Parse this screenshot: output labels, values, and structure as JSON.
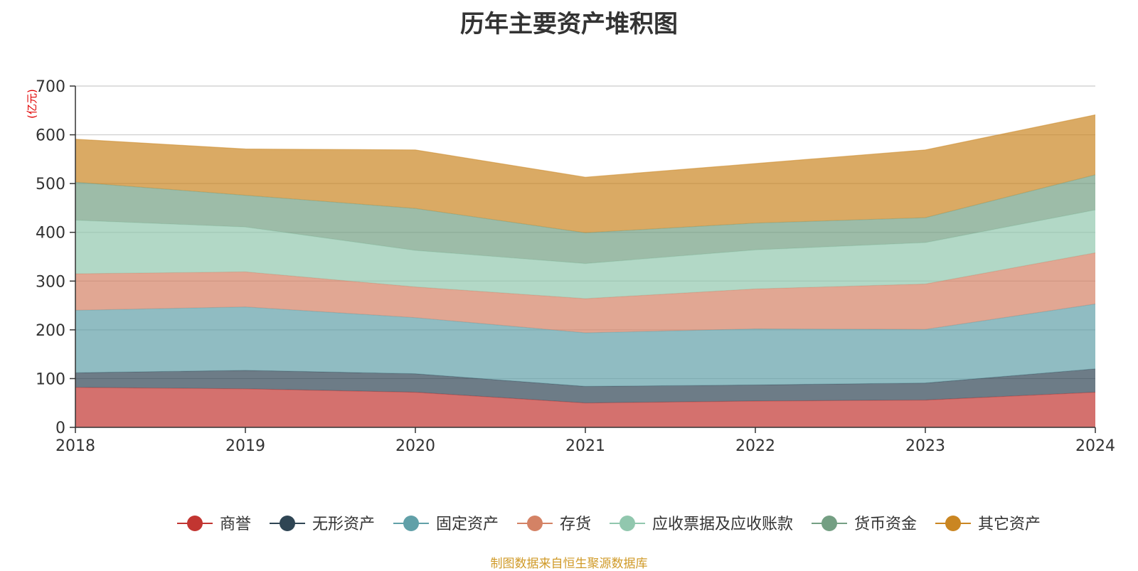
{
  "chart_data": {
    "type": "area",
    "stacked": true,
    "title": "历年主要资产堆积图",
    "unit_label": "(亿元)",
    "source_note": "制图数据来自恒生聚源数据库",
    "categories": [
      "2018",
      "2019",
      "2020",
      "2021",
      "2022",
      "2023",
      "2024"
    ],
    "ylim": [
      0,
      700
    ],
    "yticks": [
      0,
      100,
      200,
      300,
      400,
      500,
      600,
      700
    ],
    "grid": true,
    "legend_position": "bottom",
    "series": [
      {
        "name": "商誉",
        "color": "#c23531",
        "values": [
          82,
          79,
          72,
          50,
          54,
          56,
          72
        ]
      },
      {
        "name": "无形资产",
        "color": "#2f4554",
        "values": [
          30,
          38,
          38,
          34,
          33,
          35,
          48
        ]
      },
      {
        "name": "固定资产",
        "color": "#61a0a8",
        "values": [
          128,
          130,
          115,
          110,
          115,
          110,
          133
        ]
      },
      {
        "name": "存货",
        "color": "#d48265",
        "values": [
          75,
          72,
          63,
          70,
          82,
          93,
          105
        ]
      },
      {
        "name": "应收票据及应收账款",
        "color": "#91c7ae",
        "values": [
          110,
          92,
          75,
          72,
          80,
          85,
          88
        ]
      },
      {
        "name": "货币资金",
        "color": "#749f83",
        "values": [
          78,
          65,
          86,
          63,
          55,
          51,
          72
        ]
      },
      {
        "name": "其它资产",
        "color": "#ca8622",
        "values": [
          88,
          95,
          120,
          114,
          122,
          139,
          123
        ]
      }
    ]
  }
}
